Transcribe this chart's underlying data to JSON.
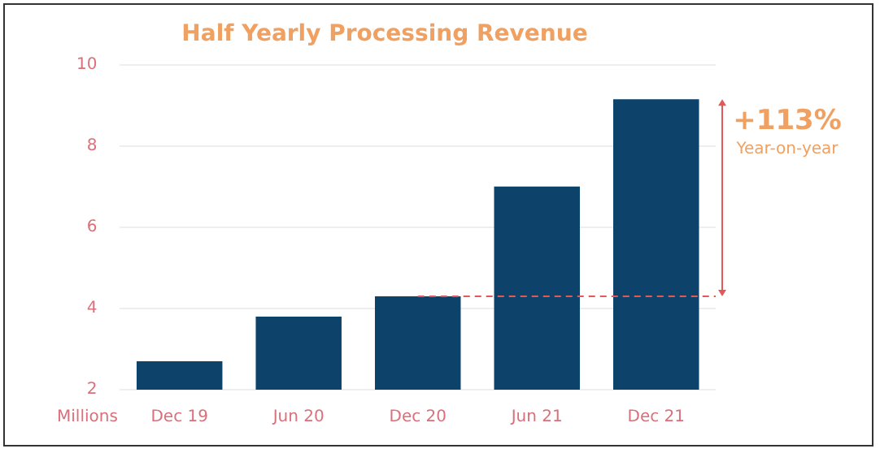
{
  "chart_data": {
    "type": "bar",
    "title": "Half Yearly Processing Revenue",
    "ylabel": "Millions",
    "categories": [
      "Dec 19",
      "Jun 20",
      "Dec 20",
      "Jun 21",
      "Dec 21"
    ],
    "values": [
      2.7,
      3.8,
      4.3,
      7.0,
      9.15
    ],
    "color": "#0d436b",
    "ylim": [
      2,
      10
    ],
    "yticks": [
      2,
      4,
      6,
      8,
      10
    ],
    "grid": "y",
    "ref_lines": [
      {
        "axis": "y",
        "value": 4.3,
        "color": "#e05a5a",
        "line_style": "dashed"
      }
    ],
    "annotations": [
      "+113%",
      "Year-on-year"
    ]
  }
}
